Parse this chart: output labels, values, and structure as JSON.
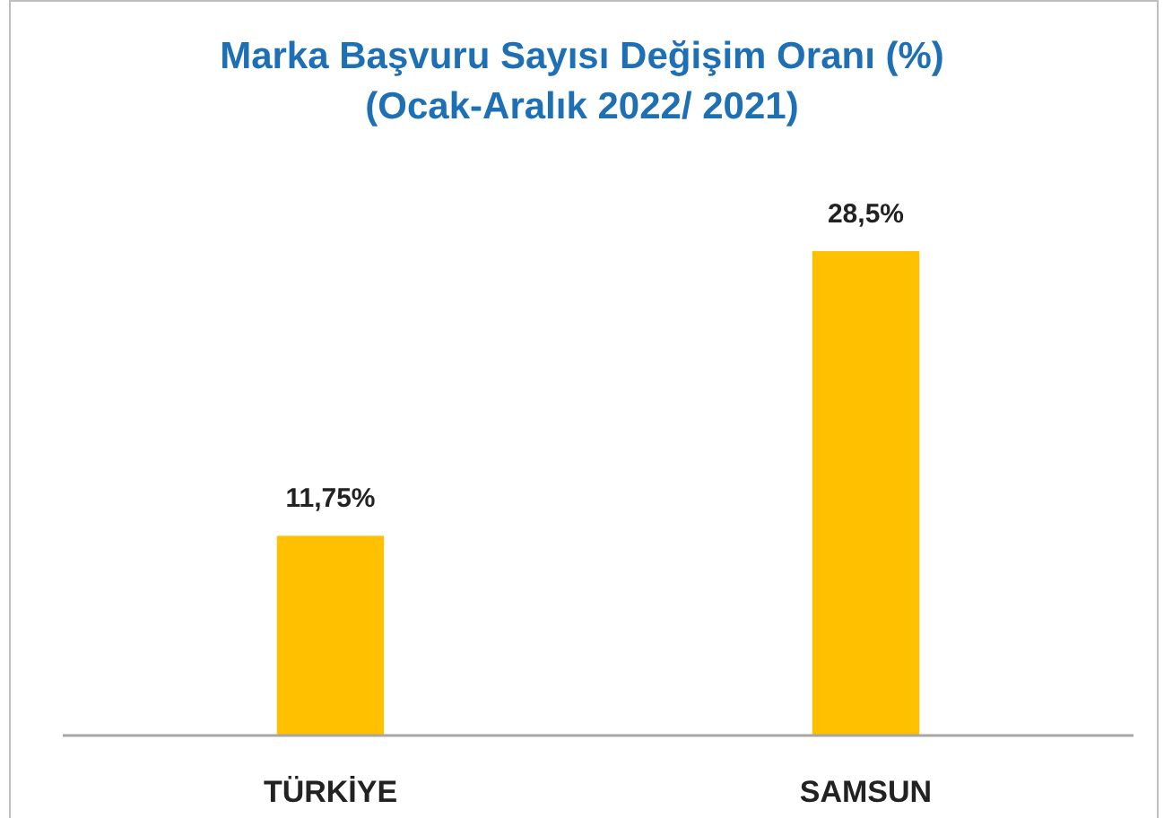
{
  "chart_data": {
    "type": "bar",
    "title": "Marka Başvuru Sayısı Değişim Oranı (%)\n(Ocak-Aralık 2022/ 2021)",
    "categories": [
      "TÜRKİYE",
      "SAMSUN"
    ],
    "values": [
      11.75,
      28.5
    ],
    "value_labels": [
      "11,75%",
      "28,5%"
    ],
    "color": "#ffc000"
  }
}
